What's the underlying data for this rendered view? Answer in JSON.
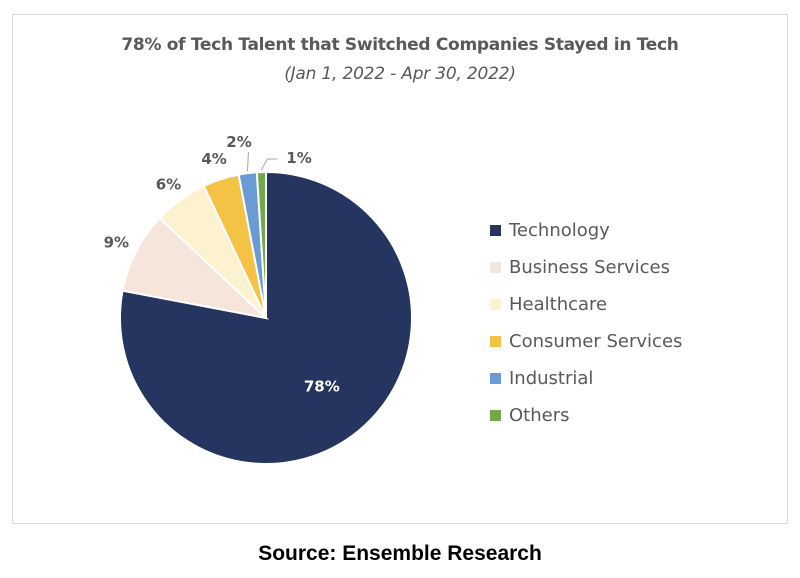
{
  "chart_data": {
    "type": "pie",
    "title": "78% of Tech Talent that Switched Companies Stayed in Tech",
    "subtitle": "(Jan 1, 2022 - Apr 30, 2022)",
    "categories": [
      "Technology",
      "Business Services",
      "Healthcare",
      "Consumer Services",
      "Industrial",
      "Others"
    ],
    "values": [
      78,
      9,
      6,
      4,
      2,
      1
    ],
    "data_labels": [
      "78%",
      "9%",
      "6%",
      "4%",
      "2%",
      "1%"
    ],
    "colors": [
      "#253560",
      "#f6e5db",
      "#fdf2d0",
      "#f4c244",
      "#6a9bd2",
      "#72a84c"
    ],
    "legend_position": "right"
  },
  "source": "Source: Ensemble Research"
}
